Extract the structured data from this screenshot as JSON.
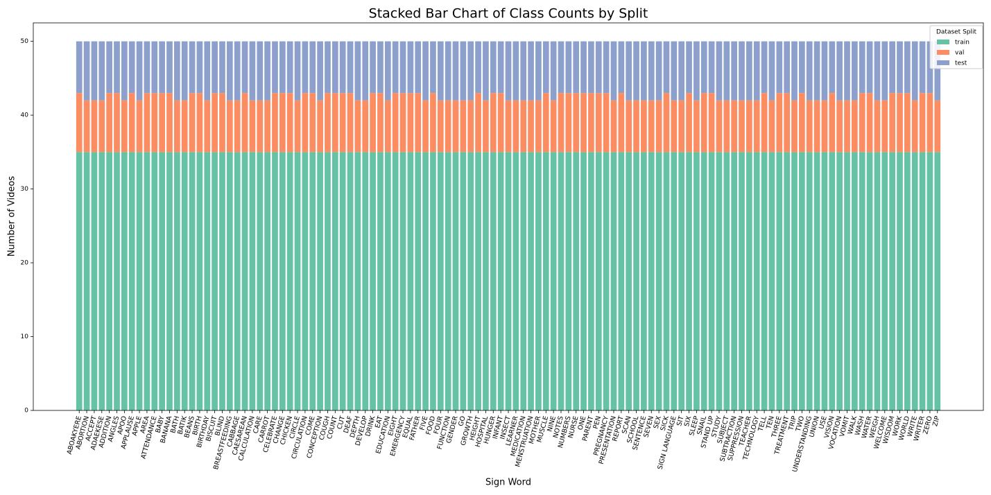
{
  "chart_data": {
    "type": "stacked_bar",
    "title": "Stacked Bar Chart of Class Counts by Split",
    "x_label": "Sign Word",
    "y_label": "Number of Videos",
    "legend_title": "Dataset Split",
    "legend": "upper right",
    "categories": [
      "ABOAKYERE",
      "ABORTION",
      "ACCEPT",
      "ADAEKESE",
      "ADDITION",
      "ANGLES",
      "APOO",
      "APPLAUSE",
      "APPLE",
      "AREA",
      "ATTENDANCE",
      "BABY",
      "BANANA",
      "BATH",
      "BATIK",
      "BEANS",
      "BIRTH",
      "BIRTHDAY",
      "BISCUIT",
      "BLIND",
      "BREASTFEEDING",
      "CABBAGE",
      "CAESAREAN",
      "CALCULATION",
      "CARE",
      "CARROT",
      "CELEBRATE",
      "CHANGE",
      "CHICKEN",
      "CIRCLE",
      "CIRCULATION",
      "COME",
      "CONCEPTION",
      "COUGH",
      "COUNT",
      "CUT",
      "DEAF",
      "DEPTH",
      "DEVELOP",
      "DRINK",
      "EAT",
      "EDUCATION",
      "EIGHT",
      "EMERGENCY",
      "EQUAL",
      "FATHER",
      "FIVE",
      "FOOD",
      "FOUR",
      "FUNCTION",
      "GENDER",
      "GO",
      "GROWTH",
      "HEIGHT",
      "HOSPITAL",
      "HUNGER",
      "INFANT",
      "INSECT",
      "LEARNER",
      "MEDICATION",
      "MENSTRUATION",
      "MOTHER",
      "MUSCLE",
      "NINE",
      "NOTES",
      "NUMBERS",
      "NURSE",
      "ONE",
      "PARENT",
      "PEN",
      "PREGNANCY",
      "PRESENTATION",
      "REPORT",
      "SCAN",
      "SCHOOL",
      "SENTENCE",
      "SEVEN",
      "SEX",
      "SICK",
      "SIGN LANGUAGE",
      "SIT",
      "SIX",
      "SLEEP",
      "SNAIL",
      "STAND UP",
      "STUDY",
      "SUBJECT",
      "SUBTRACTION",
      "SUPPRESSION",
      "TEACHER",
      "TECHNOLOGY",
      "TELL",
      "TEN",
      "THREE",
      "TREATMENT",
      "TRIP",
      "TWO",
      "UNDERSTANDING",
      "UNION",
      "USE",
      "VISION",
      "VOCATION",
      "VOMIT",
      "WALK",
      "WASH",
      "WATER",
      "WEIGH",
      "WELCOME",
      "WISDOM",
      "WORK",
      "WORLD",
      "WRITE",
      "WRITER",
      "ZERO",
      "ZIP"
    ],
    "series": [
      {
        "name": "train",
        "color": "#66c2a5",
        "values": [
          35,
          35,
          35,
          35,
          35,
          35,
          35,
          35,
          35,
          35,
          35,
          35,
          35,
          35,
          35,
          35,
          35,
          35,
          35,
          35,
          35,
          35,
          35,
          35,
          35,
          35,
          35,
          35,
          35,
          35,
          35,
          35,
          35,
          35,
          35,
          35,
          35,
          35,
          35,
          35,
          35,
          35,
          35,
          35,
          35,
          35,
          35,
          35,
          35,
          35,
          35,
          35,
          35,
          35,
          35,
          35,
          35,
          35,
          35,
          35,
          35,
          35,
          35,
          35,
          35,
          35,
          35,
          35,
          35,
          35,
          35,
          35,
          35,
          35,
          35,
          35,
          35,
          35,
          35,
          35,
          35,
          35,
          35,
          35,
          35,
          35,
          35,
          35,
          35,
          35,
          35,
          35,
          35,
          35,
          35,
          35,
          35,
          35,
          35,
          35,
          35,
          35,
          35,
          35,
          35,
          35,
          35,
          35,
          35,
          35,
          35,
          35,
          35,
          35,
          35
        ]
      },
      {
        "name": "val",
        "color": "#fc8d62",
        "values": [
          8,
          7,
          7,
          7,
          8,
          8,
          7,
          8,
          7,
          8,
          8,
          8,
          8,
          7,
          7,
          8,
          8,
          7,
          8,
          8,
          7,
          7,
          8,
          7,
          7,
          7,
          8,
          8,
          8,
          7,
          8,
          8,
          7,
          8,
          8,
          8,
          8,
          7,
          7,
          8,
          8,
          7,
          8,
          8,
          8,
          8,
          7,
          8,
          7,
          7,
          7,
          7,
          7,
          8,
          7,
          8,
          8,
          7,
          7,
          7,
          7,
          7,
          8,
          7,
          8,
          8,
          8,
          8,
          8,
          8,
          8,
          7,
          8,
          7,
          7,
          7,
          7,
          7,
          8,
          7,
          7,
          8,
          7,
          8,
          8,
          7,
          7,
          7,
          7,
          7,
          7,
          8,
          7,
          8,
          8,
          7,
          8,
          7,
          7,
          7,
          8,
          7,
          7,
          7,
          8,
          8,
          7,
          7,
          8,
          8,
          8,
          7,
          8,
          8,
          7
        ]
      },
      {
        "name": "test",
        "color": "#8da0cb",
        "values": [
          7,
          8,
          8,
          8,
          7,
          7,
          8,
          7,
          8,
          7,
          7,
          7,
          7,
          8,
          8,
          7,
          7,
          8,
          7,
          7,
          8,
          8,
          7,
          8,
          8,
          8,
          7,
          7,
          7,
          8,
          7,
          7,
          8,
          7,
          7,
          7,
          7,
          8,
          8,
          7,
          7,
          8,
          7,
          7,
          7,
          7,
          8,
          7,
          8,
          8,
          8,
          8,
          8,
          7,
          8,
          7,
          7,
          8,
          8,
          8,
          8,
          8,
          7,
          8,
          7,
          7,
          7,
          7,
          7,
          7,
          7,
          8,
          7,
          8,
          8,
          8,
          8,
          8,
          7,
          8,
          8,
          7,
          8,
          7,
          7,
          8,
          8,
          8,
          8,
          8,
          8,
          7,
          8,
          7,
          7,
          8,
          7,
          8,
          8,
          8,
          7,
          8,
          8,
          8,
          7,
          7,
          8,
          8,
          7,
          7,
          7,
          8,
          7,
          7,
          8
        ]
      }
    ],
    "ylim": [
      0,
      52.5
    ],
    "yticks": [
      0,
      10,
      20,
      30,
      40,
      50
    ],
    "grid": false
  }
}
